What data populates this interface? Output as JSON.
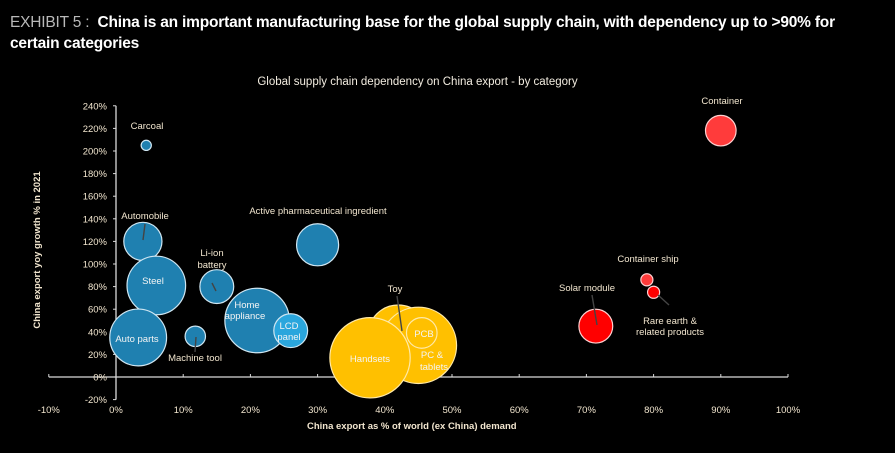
{
  "header": {
    "exhibit_label": "EXHIBIT 5 :",
    "title": "China is an important manufacturing base for the global supply chain, with dependency up to >90% for certain categories"
  },
  "chart_data": {
    "type": "scatter",
    "subtype": "bubble",
    "title": "Global supply chain dependency on China export - by category",
    "xlabel": "China export as % of world (ex China) demand",
    "ylabel": "China export yoy growth % in 2021",
    "xlim": [
      -10,
      100
    ],
    "ylim": [
      -20,
      240
    ],
    "x_ticks": [
      "-10%",
      "0%",
      "10%",
      "20%",
      "30%",
      "40%",
      "50%",
      "60%",
      "70%",
      "80%",
      "90%",
      "100%"
    ],
    "x_tick_values": [
      -10,
      0,
      10,
      20,
      30,
      40,
      50,
      60,
      70,
      80,
      90,
      100
    ],
    "y_ticks": [
      "-20%",
      "0%",
      "20%",
      "40%",
      "60%",
      "80%",
      "100%",
      "120%",
      "140%",
      "160%",
      "180%",
      "200%",
      "220%",
      "240%"
    ],
    "y_tick_values": [
      -20,
      0,
      20,
      40,
      60,
      80,
      100,
      120,
      140,
      160,
      180,
      200,
      220,
      240
    ],
    "grid": false,
    "legend": "none",
    "color_groups": {
      "blue": "#1f80b0",
      "light_blue": "#2aa6dd",
      "yellow": "#ffc000",
      "red": "#ff0000",
      "light_red": "#ff3b3b"
    },
    "points": [
      {
        "name": "Carcoal",
        "x": 4.5,
        "y": 205,
        "size": 1,
        "color": "blue",
        "label_pos": "outside"
      },
      {
        "name": "Automobile",
        "x": 4,
        "y": 120,
        "size": 14,
        "color": "blue",
        "label_pos": "outside"
      },
      {
        "name": "Steel",
        "x": 6,
        "y": 81,
        "size": 33,
        "color": "blue",
        "label_pos": "inside"
      },
      {
        "name": "Auto parts",
        "x": 3.3,
        "y": 35,
        "size": 31,
        "color": "blue",
        "label_pos": "inside"
      },
      {
        "name": "Machine tool",
        "x": 11.8,
        "y": 36,
        "size": 4,
        "color": "blue",
        "label_pos": "outside"
      },
      {
        "name": "Li-ion battery",
        "x": 15,
        "y": 80,
        "size": 11,
        "color": "blue",
        "label_pos": "outside"
      },
      {
        "name": "Home appliance",
        "x": 21,
        "y": 50,
        "size": 40,
        "color": "blue",
        "label_pos": "inside"
      },
      {
        "name": "LCD panel",
        "x": 26,
        "y": 41,
        "size": 11,
        "color": "light_blue",
        "label_pos": "inside"
      },
      {
        "name": "Active pharmaceutical ingredient",
        "x": 30,
        "y": 117,
        "size": 17,
        "color": "blue",
        "label_pos": "outside"
      },
      {
        "name": "Toy",
        "x": 42,
        "y": 37,
        "size": 35,
        "color": "yellow",
        "label_pos": "outside"
      },
      {
        "name": "Handsets",
        "x": 37.8,
        "y": 17,
        "size": 62,
        "color": "yellow",
        "label_pos": "inside"
      },
      {
        "name": "PC & tablets",
        "x": 45,
        "y": 28,
        "size": 56,
        "color": "yellow",
        "label_pos": "inside"
      },
      {
        "name": "PCB",
        "x": 45.5,
        "y": 39,
        "size": 9,
        "color": "yellow",
        "label_pos": "inside"
      },
      {
        "name": "Solar module",
        "x": 71.4,
        "y": 45,
        "size": 11,
        "color": "red",
        "label_pos": "outside"
      },
      {
        "name": "Container ship",
        "x": 79,
        "y": 86,
        "size": 1.4,
        "color": "light_red",
        "label_pos": "outside"
      },
      {
        "name": "Rare earth & related products",
        "x": 80,
        "y": 75,
        "size": 1.4,
        "color": "red",
        "label_pos": "outside"
      },
      {
        "name": "Container",
        "x": 90,
        "y": 218,
        "size": 9,
        "color": "light_red",
        "label_pos": "outside"
      }
    ]
  },
  "labels": {
    "carcoal": "Carcoal",
    "automobile": "Automobile",
    "steel": "Steel",
    "auto_parts": "Auto parts",
    "machine_tool": "Machine tool",
    "li_ion_1": "Li-ion",
    "li_ion_2": "battery",
    "home_1": "Home",
    "home_2": "appliance",
    "lcd_1": "LCD",
    "lcd_2": "panel",
    "api": "Active pharmaceutical ingredient",
    "toy": "Toy",
    "handsets": "Handsets",
    "pcb": "PCB",
    "pc_1": "PC &",
    "pc_2": "tablets",
    "solar": "Solar module",
    "container_ship": "Container ship",
    "rare_1": "Rare earth &",
    "rare_2": "related products",
    "container": "Container"
  }
}
